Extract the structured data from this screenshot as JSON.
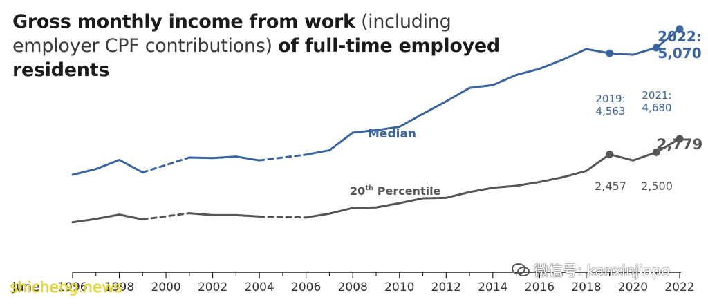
{
  "title": {
    "bold_1": "Gross monthly income from work",
    "normal": " (including employer CPF contributions) ",
    "bold_2": "of full-time employed residents"
  },
  "colors": {
    "median": "#3a64a0",
    "p20": "#555555",
    "axis": "#222222",
    "watermark_left": "#e9d52a"
  },
  "watermark": {
    "left": "shicheng.news",
    "right": "微信号: kanxinjiapo",
    "right_icon": "wechat-icon"
  },
  "chart_data": {
    "type": "line",
    "xlabel": "June:",
    "x_ticks": [
      "1996",
      "1998",
      "2000",
      "2002",
      "2004",
      "2006",
      "2008",
      "2010",
      "2012",
      "2014",
      "2016",
      "2018",
      "2020",
      "2022"
    ],
    "xlim": [
      1996,
      2022
    ],
    "ylim": [
      0,
      5500
    ],
    "grid": false,
    "series": [
      {
        "name": "Median",
        "color": "#3a64a0",
        "points": [
          [
            1996,
            2030
          ],
          [
            1997,
            2150
          ],
          [
            1998,
            2340
          ],
          [
            1999,
            2080
          ],
          [
            2001,
            2390
          ],
          [
            2002,
            2380
          ],
          [
            2003,
            2410
          ],
          [
            2004,
            2330
          ],
          [
            2006,
            2450
          ],
          [
            2007,
            2540
          ],
          [
            2008,
            2910
          ],
          [
            2009,
            2960
          ],
          [
            2010,
            3030
          ],
          [
            2011,
            3300
          ],
          [
            2012,
            3560
          ],
          [
            2013,
            3840
          ],
          [
            2014,
            3900
          ],
          [
            2015,
            4110
          ],
          [
            2016,
            4240
          ],
          [
            2017,
            4430
          ],
          [
            2018,
            4650
          ],
          [
            2019,
            4563
          ],
          [
            2020,
            4534
          ],
          [
            2021,
            4680
          ],
          [
            2022,
            5070
          ]
        ],
        "dashed_segments": [
          [
            1999,
            2001
          ],
          [
            2004,
            2006
          ]
        ],
        "markers": [
          2019,
          2021,
          2022
        ]
      },
      {
        "name": "20th Percentile",
        "color": "#555555",
        "points": [
          [
            1996,
            1040
          ],
          [
            1997,
            1110
          ],
          [
            1998,
            1200
          ],
          [
            1999,
            1100
          ],
          [
            2001,
            1230
          ],
          [
            2002,
            1190
          ],
          [
            2003,
            1190
          ],
          [
            2004,
            1160
          ],
          [
            2006,
            1140
          ],
          [
            2007,
            1220
          ],
          [
            2008,
            1340
          ],
          [
            2009,
            1350
          ],
          [
            2010,
            1440
          ],
          [
            2011,
            1540
          ],
          [
            2012,
            1550
          ],
          [
            2013,
            1670
          ],
          [
            2014,
            1760
          ],
          [
            2015,
            1800
          ],
          [
            2016,
            1880
          ],
          [
            2017,
            1980
          ],
          [
            2018,
            2110
          ],
          [
            2019,
            2457
          ],
          [
            2020,
            2330
          ],
          [
            2021,
            2500
          ],
          [
            2022,
            2779
          ]
        ],
        "dashed_segments": [
          [
            1999,
            2001
          ],
          [
            2004,
            2006
          ]
        ],
        "markers": [
          2019,
          2021,
          2022
        ]
      }
    ],
    "annotations": [
      {
        "series": "Median",
        "text_lines": [
          "2022:",
          "5,070"
        ],
        "year": 2022
      },
      {
        "series": "Median",
        "text_lines": [
          "2019:",
          "4,563"
        ],
        "year": 2019
      },
      {
        "series": "Median",
        "text_lines": [
          "2021:",
          "4,680"
        ],
        "year": 2021
      },
      {
        "series": "20th Percentile",
        "text_lines": [
          "2,779"
        ],
        "year": 2022
      },
      {
        "series": "20th Percentile",
        "text_lines": [
          "2,457"
        ],
        "year": 2019
      },
      {
        "series": "20th Percentile",
        "text_lines": [
          "2,500"
        ],
        "year": 2021
      }
    ],
    "series_labels": {
      "median": "Median",
      "p20_main": "20",
      "p20_sup": "th",
      "p20_rest": " Percentile"
    }
  }
}
